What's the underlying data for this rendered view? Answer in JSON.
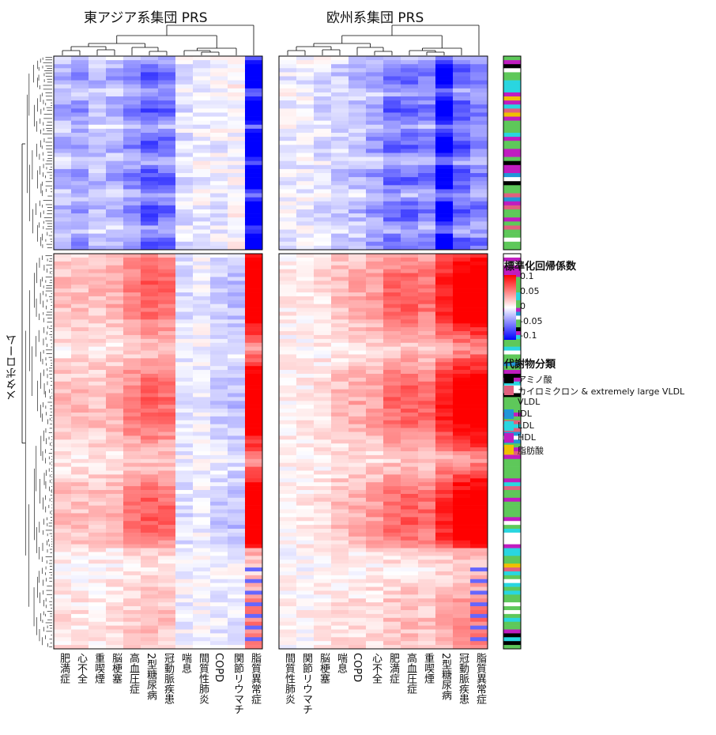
{
  "chart_data": {
    "type": "heatmap",
    "panels": [
      {
        "title": "東アジア系集団 PRS",
        "columns": [
          "肥満症",
          "心不全",
          "重喫煙",
          "脳梗塞",
          "高血圧症",
          "2型糖尿病",
          "冠動脈疾患",
          "喘息",
          "間質性肺炎",
          "COPD",
          "関節リウマチ",
          "脂質異常症"
        ]
      },
      {
        "title": "欧州系集団 PRS",
        "columns": [
          "間質性肺炎",
          "関節リウマチ",
          "脳梗塞",
          "喘息",
          "COPD",
          "心不全",
          "肥満症",
          "高血圧症",
          "重喫煙",
          "2型糖尿病",
          "冠動脈疾患",
          "脂質異常症"
        ]
      }
    ],
    "ylabel": "メタボローム",
    "row_split": "upper cluster / lower cluster",
    "colorbar": {
      "title": "標準化回帰係数",
      "ticks": [
        "0.1",
        "0.05",
        "0",
        "-0.05",
        "-0.1"
      ],
      "range": [
        -0.1,
        0.1
      ],
      "colors": {
        "high": "#ff0000",
        "mid": "#ffffff",
        "low": "#0000ff"
      }
    },
    "categories_legend": {
      "title": "代謝物分類",
      "items": [
        {
          "label": "アミノ酸",
          "color": "#000000"
        },
        {
          "label": "カイロミクロン & extremely large VLDL",
          "color": "#e0607e"
        },
        {
          "label": "VLDL",
          "color": "#5ec85a"
        },
        {
          "label": "IDL",
          "color": "#2196d8"
        },
        {
          "label": "LDL",
          "color": "#29d6e0"
        },
        {
          "label": "HDL",
          "color": "#c01cc0"
        },
        {
          "label": "脂肪酸",
          "color": "#f0c000"
        }
      ]
    }
  }
}
